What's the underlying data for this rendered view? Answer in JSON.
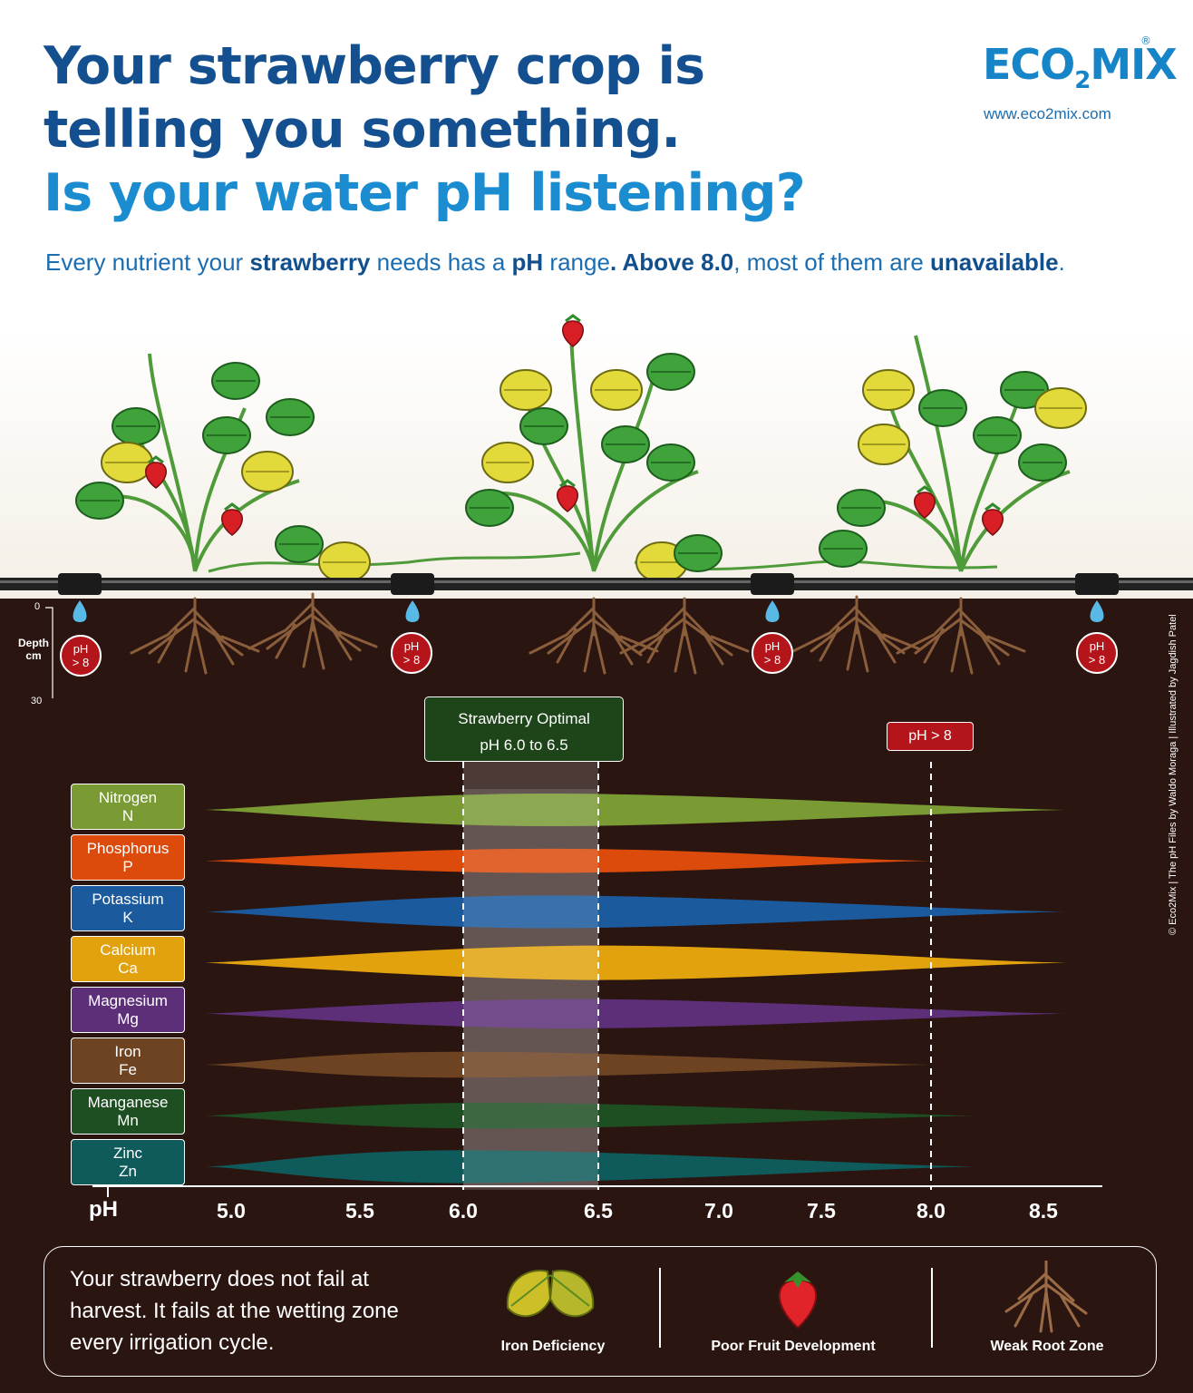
{
  "header": {
    "line1": "Your strawberry crop is",
    "line2": "telling you something.",
    "line3": "Is your water pH listening?",
    "subtitle_parts": [
      "Every nutrient your ",
      "strawberry",
      " needs has a ",
      "pH",
      " range",
      ". Above 8.0",
      ", most of them are ",
      "unavailable",
      "."
    ]
  },
  "brand": {
    "logo_a": "ECO",
    "logo_sub": "2",
    "logo_b": "MIX",
    "registered": "®",
    "url": "www.eco2mix.com"
  },
  "depth": {
    "top": "0",
    "label_line1": "Depth",
    "label_line2": "cm",
    "bottom": "30"
  },
  "ph_badge": {
    "line1": "pH",
    "line2": "> 8"
  },
  "optimal": {
    "line1": "Strawberry Optimal",
    "line2": "pH 6.0 to 6.5"
  },
  "ph8_marker": "pH > 8",
  "credit": "© Eco2Mix | The pH Files by Waldo Moraga | Illustrated by Jagdish Patel",
  "chart_data": {
    "type": "area",
    "xlabel": "pH",
    "x_ticks": [
      5.0,
      5.5,
      6.0,
      6.5,
      7.0,
      7.5,
      8.0,
      8.5
    ],
    "x_tick_labels": [
      "5.0",
      "5.5",
      "6.0",
      "6.5",
      "7.0",
      "7.5",
      "8.0",
      "8.5"
    ],
    "optimal_range": [
      6.0,
      6.5
    ],
    "reference_line": 8.0,
    "series": [
      {
        "name": "Nitrogen",
        "symbol": "N",
        "color": "#7a9a34",
        "start": 4.9,
        "end": 8.6,
        "peak": 6.3,
        "width": 0.95
      },
      {
        "name": "Phosphorus",
        "symbol": "P",
        "color": "#dc4b0c",
        "start": 4.9,
        "end": 8.0,
        "peak": 6.3,
        "width": 0.7
      },
      {
        "name": "Potassium",
        "symbol": "K",
        "color": "#1a5a9d",
        "start": 4.9,
        "end": 8.6,
        "peak": 6.3,
        "width": 0.95
      },
      {
        "name": "Calcium",
        "symbol": "Ca",
        "color": "#e1a20d",
        "start": 4.9,
        "end": 8.6,
        "peak": 6.5,
        "width": 1.0
      },
      {
        "name": "Magnesium",
        "symbol": "Mg",
        "color": "#5c2f78",
        "start": 4.9,
        "end": 8.6,
        "peak": 6.4,
        "width": 0.85
      },
      {
        "name": "Iron",
        "symbol": "Fe",
        "color": "#6e4322",
        "start": 4.9,
        "end": 8.0,
        "peak": 6.0,
        "width": 0.75
      },
      {
        "name": "Manganese",
        "symbol": "Mn",
        "color": "#1e4f22",
        "start": 4.9,
        "end": 8.2,
        "peak": 6.1,
        "width": 0.75
      },
      {
        "name": "Zinc",
        "symbol": "Zn",
        "color": "#0f5a5a",
        "start": 4.9,
        "end": 8.2,
        "peak": 6.0,
        "width": 0.95
      }
    ]
  },
  "bottom": {
    "message": "Your strawberry does not fail at harvest. It fails at the wetting zone every irrigation cycle.",
    "items": [
      "Iron Deficiency",
      "Poor Fruit Development",
      "Weak Root Zone"
    ]
  }
}
